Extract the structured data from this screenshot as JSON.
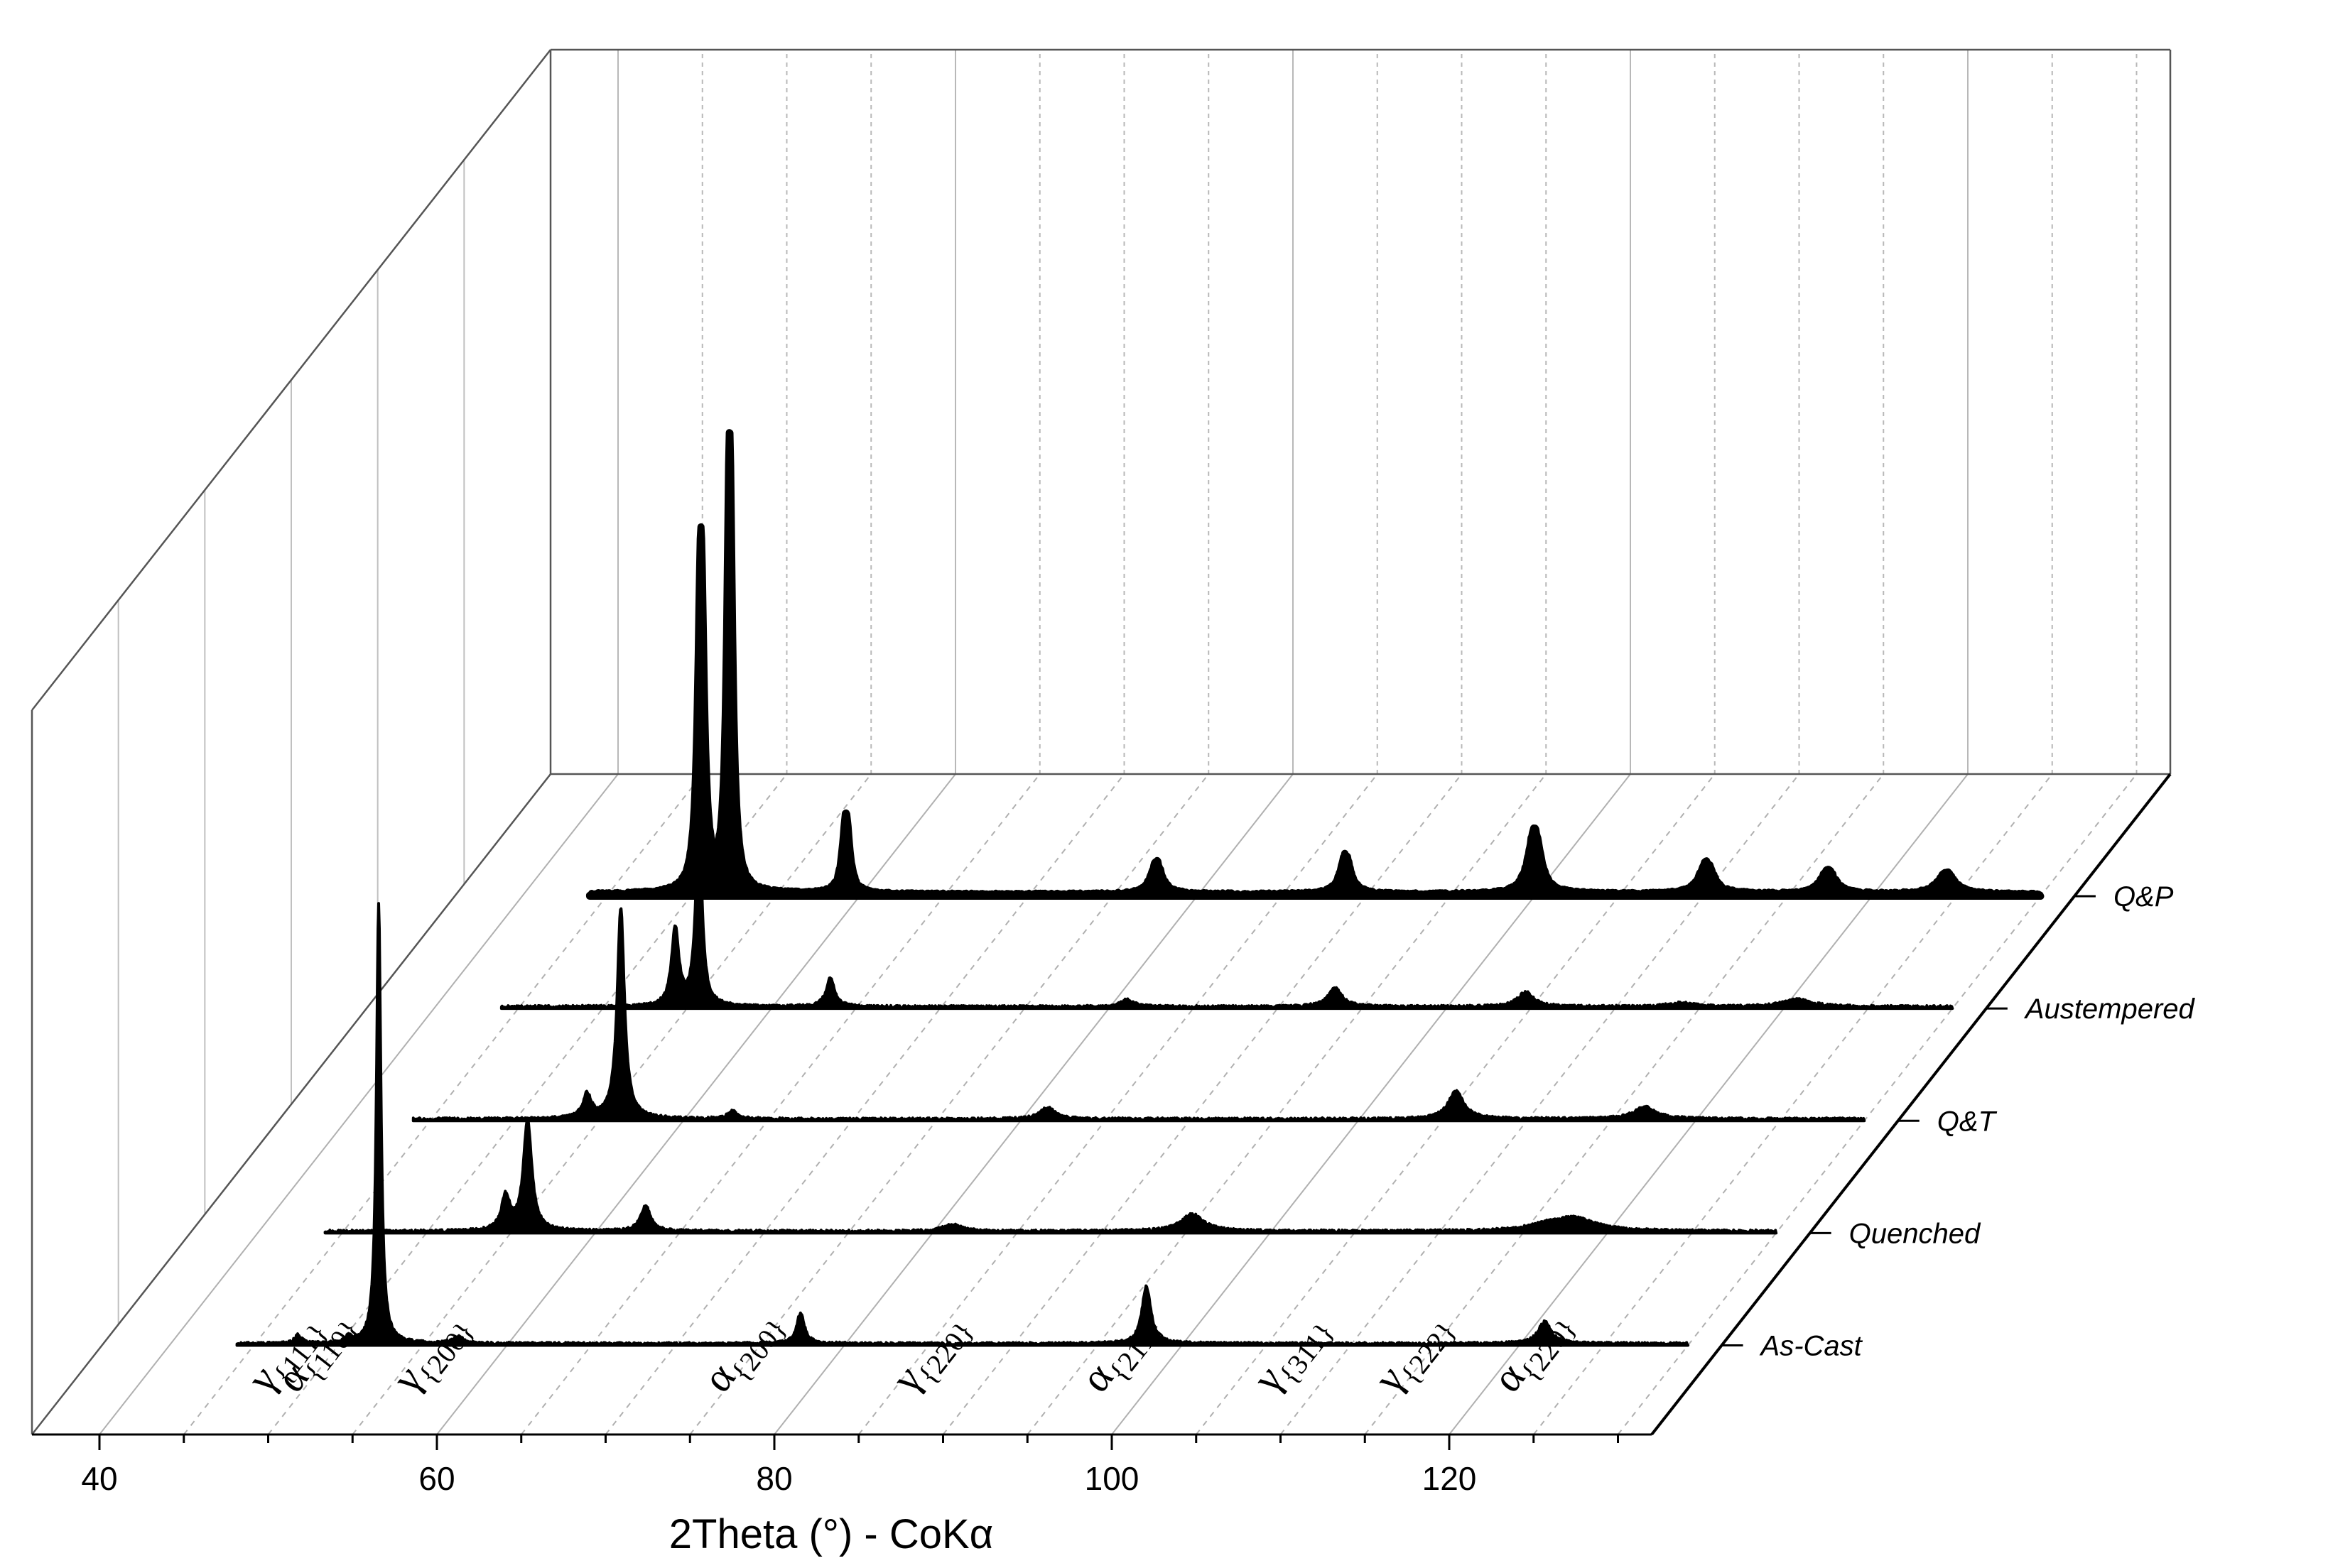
{
  "chart_data": {
    "type": "line",
    "style": "3D waterfall (stacked offset diffraction patterns)",
    "xlabel": "2Theta (°) - CoKα",
    "x_ticks": [
      40,
      60,
      80,
      100,
      120
    ],
    "xlim": [
      36,
      132
    ],
    "grid": true,
    "ylabel": "",
    "series": [
      {
        "name": "As-Cast",
        "x_range": [
          44,
          130
        ],
        "peaks": [
          {
            "x": 47.6,
            "height": 0.02,
            "width": 0.2
          },
          {
            "x": 50.6,
            "height": 0.015,
            "width": 0.2
          },
          {
            "x": 52.4,
            "height": 1.0,
            "width": 0.16
          },
          {
            "x": 57.1,
            "height": 0.015,
            "width": 0.4
          },
          {
            "x": 77.4,
            "height": 0.07,
            "width": 0.28
          },
          {
            "x": 97.9,
            "height": 0.13,
            "width": 0.32
          },
          {
            "x": 121.5,
            "height": 0.05,
            "width": 0.45
          }
        ]
      },
      {
        "name": "Quenched",
        "x_range": [
          44,
          130
        ],
        "peaks": [
          {
            "x": 54.7,
            "height": 0.08,
            "width": 0.3
          },
          {
            "x": 56.0,
            "height": 0.26,
            "width": 0.3
          },
          {
            "x": 63.0,
            "height": 0.06,
            "width": 0.35
          },
          {
            "x": 81.2,
            "height": 0.015,
            "width": 0.7
          },
          {
            "x": 95.4,
            "height": 0.04,
            "width": 0.8
          },
          {
            "x": 116.3,
            "height": 0.01,
            "width": 1.2
          },
          {
            "x": 118.0,
            "height": 0.03,
            "width": 1.5
          }
        ]
      },
      {
        "name": "Q&T",
        "x_range": [
          44,
          130
        ],
        "peaks": [
          {
            "x": 54.3,
            "height": 0.06,
            "width": 0.3
          },
          {
            "x": 56.3,
            "height": 0.53,
            "width": 0.26
          },
          {
            "x": 62.9,
            "height": 0.02,
            "width": 0.35
          },
          {
            "x": 81.6,
            "height": 0.03,
            "width": 0.5
          },
          {
            "x": 105.8,
            "height": 0.07,
            "width": 0.55
          },
          {
            "x": 117.0,
            "height": 0.03,
            "width": 0.8
          }
        ]
      },
      {
        "name": "Austempered",
        "x_range": [
          44,
          130
        ],
        "peaks": [
          {
            "x": 54.3,
            "height": 0.21,
            "width": 0.26
          },
          {
            "x": 55.7,
            "height": 0.51,
            "width": 0.22
          },
          {
            "x": 63.5,
            "height": 0.08,
            "width": 0.3
          },
          {
            "x": 81.1,
            "height": 0.02,
            "width": 0.45
          },
          {
            "x": 93.4,
            "height": 0.05,
            "width": 0.5
          },
          {
            "x": 104.7,
            "height": 0.04,
            "width": 0.55
          },
          {
            "x": 113.9,
            "height": 0.01,
            "width": 0.9
          },
          {
            "x": 120.8,
            "height": 0.02,
            "width": 1.0
          }
        ]
      },
      {
        "name": "Q&P",
        "x_range": [
          44,
          130
        ],
        "peaks": [
          {
            "x": 50.6,
            "height": 0.98,
            "width": 0.22
          },
          {
            "x": 52.3,
            "height": 1.25,
            "width": 0.2
          },
          {
            "x": 59.2,
            "height": 0.22,
            "width": 0.26
          },
          {
            "x": 77.6,
            "height": 0.09,
            "width": 0.4
          },
          {
            "x": 88.8,
            "height": 0.11,
            "width": 0.38
          },
          {
            "x": 100.0,
            "height": 0.18,
            "width": 0.45
          },
          {
            "x": 110.2,
            "height": 0.09,
            "width": 0.5
          },
          {
            "x": 117.4,
            "height": 0.07,
            "width": 0.5
          },
          {
            "x": 124.4,
            "height": 0.06,
            "width": 0.6
          }
        ]
      }
    ],
    "peak_labels": [
      {
        "phase": "γ",
        "hkl": "{111}",
        "x": 50.6
      },
      {
        "phase": "α",
        "hkl": "{110}",
        "x": 52.3
      },
      {
        "phase": "γ",
        "hkl": "{200}",
        "x": 59.2
      },
      {
        "phase": "α",
        "hkl": "{200}",
        "x": 77.6
      },
      {
        "phase": "γ",
        "hkl": "{220}",
        "x": 88.8
      },
      {
        "phase": "α",
        "hkl": "{211}",
        "x": 100.0
      },
      {
        "phase": "γ",
        "hkl": "{311}",
        "x": 110.2
      },
      {
        "phase": "γ",
        "hkl": "{222}",
        "x": 117.4
      },
      {
        "phase": "α",
        "hkl": "{220}",
        "x": 124.4
      }
    ]
  }
}
